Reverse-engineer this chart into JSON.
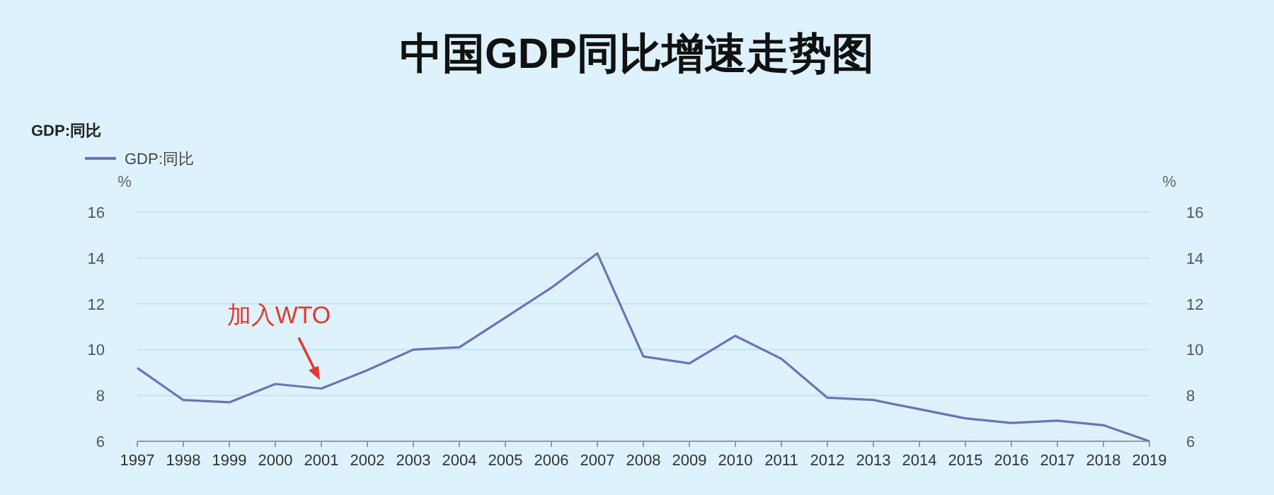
{
  "chart_data": {
    "type": "line",
    "title": "中国GDP同比增速走势图",
    "legend_title": "GDP:同比",
    "ylabel": "%",
    "y2label": "%",
    "categories": [
      "1997",
      "1998",
      "1999",
      "2000",
      "2001",
      "2002",
      "2003",
      "2004",
      "2005",
      "2006",
      "2007",
      "2008",
      "2009",
      "2010",
      "2011",
      "2012",
      "2013",
      "2014",
      "2015",
      "2016",
      "2017",
      "2018",
      "2019"
    ],
    "series": [
      {
        "name": "GDP:同比",
        "color": "#6b74b3",
        "values": [
          9.2,
          7.8,
          7.7,
          8.5,
          8.3,
          9.1,
          10.0,
          10.1,
          11.4,
          12.7,
          14.2,
          9.7,
          9.4,
          10.6,
          9.6,
          7.9,
          7.8,
          7.4,
          7.0,
          6.8,
          6.9,
          6.7,
          6.0
        ]
      }
    ],
    "ylim": [
      6,
      16
    ],
    "yticks": [
      6,
      8,
      10,
      12,
      14,
      16
    ],
    "y2lim": [
      6,
      16
    ],
    "y2ticks": [
      6,
      8,
      10,
      12,
      14,
      16
    ],
    "annotations": [
      {
        "text": "加入WTO",
        "x": "2001",
        "y": 8.3
      }
    ],
    "grid": "y",
    "legend": "top left",
    "marker": "none",
    "line_style": "solid"
  }
}
